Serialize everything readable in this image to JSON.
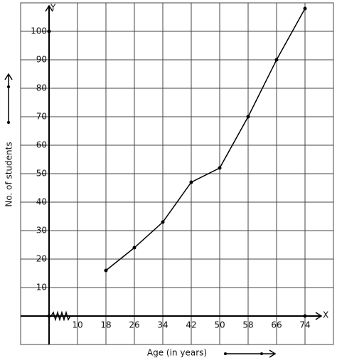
{
  "chart_data": {
    "type": "line",
    "x_label": "Age (in years)",
    "y_label": "No. of students",
    "x_axis_letter": "X",
    "y_axis_letter": "Y",
    "x": [
      18,
      26,
      34,
      42,
      50,
      58,
      66,
      74
    ],
    "series": [
      {
        "color": "#000000",
        "values": [
          16,
          24,
          33,
          47,
          52,
          70,
          90,
          108
        ]
      }
    ],
    "xlim": [
      -6,
      82
    ],
    "ylim": [
      -10,
      110
    ],
    "xticks": [
      10,
      18,
      26,
      34,
      42,
      50,
      58,
      66,
      74
    ],
    "yticks": [
      10,
      20,
      30,
      40,
      50,
      60,
      70,
      80,
      90,
      100
    ],
    "grid": true
  }
}
